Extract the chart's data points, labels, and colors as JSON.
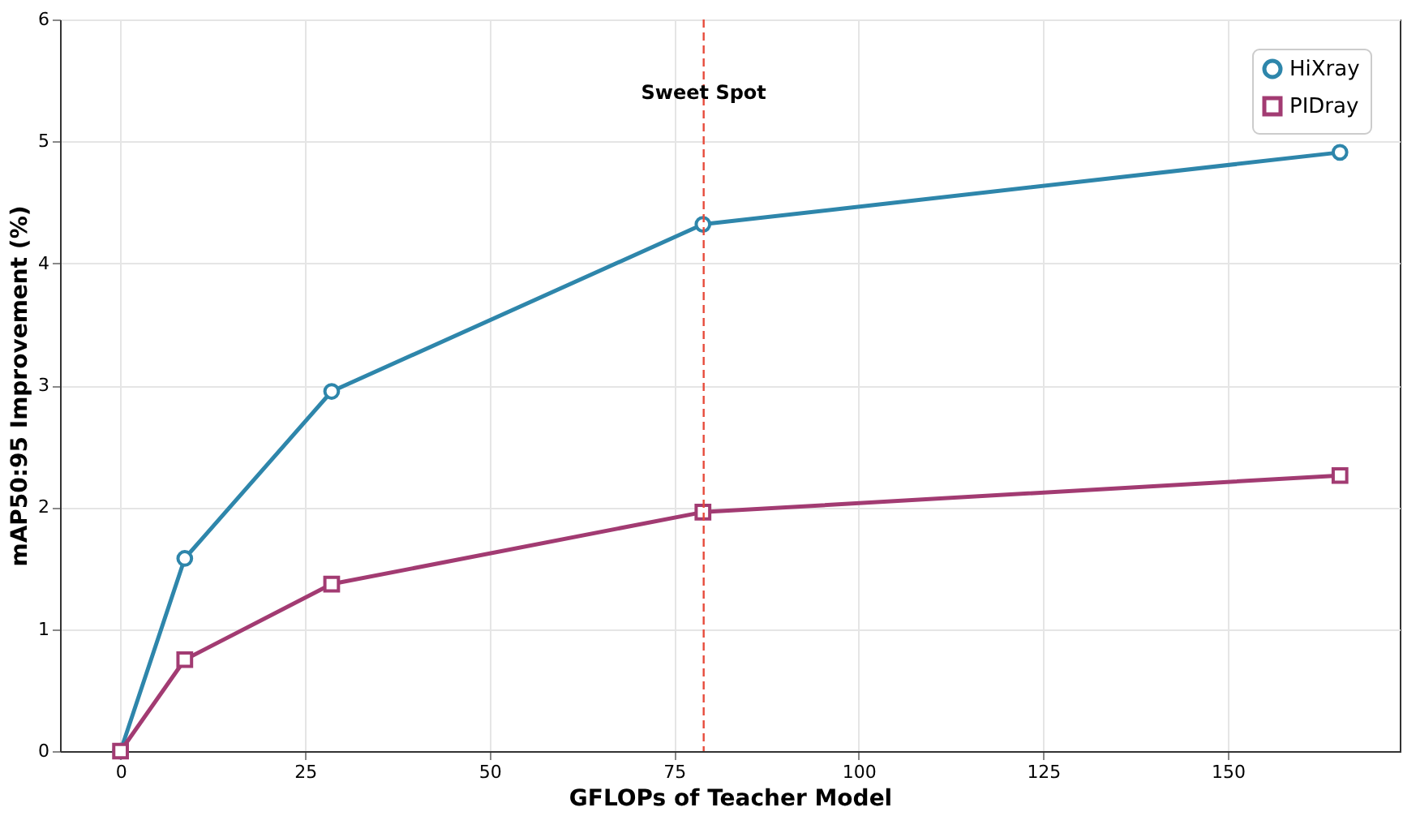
{
  "chart_data": {
    "type": "line",
    "xlabel": "GFLOPs of Teacher Model",
    "ylabel": "mAP50:95 Improvement (%)",
    "x": [
      0,
      8.7,
      28.6,
      78.9,
      165.2
    ],
    "series": [
      {
        "name": "HiXray",
        "color": "#2e86ab",
        "marker": "circle",
        "values": [
          0,
          1.58,
          2.95,
          4.32,
          4.91
        ]
      },
      {
        "name": "PIDray",
        "color": "#a23b72",
        "marker": "square",
        "values": [
          0,
          0.75,
          1.37,
          1.96,
          2.26
        ]
      }
    ],
    "xlim": [
      -8.2,
      173.3
    ],
    "xticks": [
      0,
      25,
      50,
      75,
      100,
      125,
      150
    ],
    "ylim": [
      0,
      6
    ],
    "yticks": [
      0,
      1,
      2,
      3,
      4,
      5,
      6
    ],
    "ref_lines": [
      {
        "axis": "x",
        "value": 79,
        "label": "Sweet Spot",
        "color": "#e74c3c",
        "line_style": "dashed"
      }
    ],
    "grid": true,
    "legend": "top right",
    "line_style": "solid"
  }
}
